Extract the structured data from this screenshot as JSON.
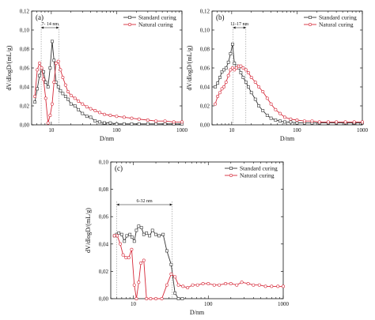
{
  "figure": {
    "colors": {
      "standard": "#333333",
      "natural": "#d62a3a",
      "axis": "#111111"
    }
  },
  "chart_data": [
    {
      "type": "line",
      "panel_label": "(a)",
      "xlabel": "D/nm",
      "ylabel": "dV/dlogD/(mL/g)",
      "xscale": "log",
      "xlim": [
        5,
        1000
      ],
      "ylim": [
        0,
        0.12
      ],
      "x_ticks": [
        10,
        100,
        1000
      ],
      "x_tick_labels": [
        "10",
        "100",
        "1000"
      ],
      "y_ticks": [
        0,
        0.02,
        0.04,
        0.06,
        0.08,
        0.1,
        0.12
      ],
      "y_tick_labels": [
        "0,00",
        "0,02",
        "0,04",
        "0,06",
        "0,08",
        "0,10",
        "0,12"
      ],
      "legend_position": "top-right",
      "annotation": {
        "text": "7- 14 nm",
        "x_start": 7,
        "x_end": 13
      },
      "series": [
        {
          "name": "Standard curing",
          "x": [
            5.6,
            6.1,
            6.6,
            7.1,
            7.6,
            8.2,
            8.9,
            9.6,
            10.3,
            11.0,
            11.8,
            12.8,
            13.8,
            15.0,
            16.5,
            18,
            20,
            23,
            26,
            30,
            35,
            40,
            47,
            55,
            65,
            80,
            100,
            130,
            170,
            220,
            300,
            400,
            550,
            750,
            1000
          ],
          "y": [
            0.024,
            0.038,
            0.052,
            0.058,
            0.056,
            0.045,
            0.04,
            0.06,
            0.088,
            0.068,
            0.045,
            0.04,
            0.036,
            0.033,
            0.03,
            0.027,
            0.022,
            0.02,
            0.016,
            0.012,
            0.009,
            0.008,
            0.004,
            0.003,
            0.002,
            0.002,
            0.001,
            0.001,
            0.001,
            0.001,
            0.001,
            0.001,
            0.001,
            0.001,
            0.001
          ]
        },
        {
          "name": "Natural curing",
          "x": [
            5.6,
            6.1,
            6.6,
            7.1,
            7.6,
            8.2,
            8.9,
            9.6,
            10.3,
            11.0,
            11.8,
            12.8,
            13.8,
            15.0,
            16.5,
            18,
            20,
            23,
            26,
            30,
            35,
            40,
            47,
            55,
            65,
            80,
            100,
            130,
            170,
            220,
            300,
            400,
            550,
            750,
            1000
          ],
          "y": [
            0.03,
            0.058,
            0.065,
            0.06,
            0.048,
            0.028,
            0.002,
            0.01,
            0.022,
            0.045,
            0.065,
            0.067,
            0.058,
            0.05,
            0.042,
            0.035,
            0.031,
            0.028,
            0.025,
            0.022,
            0.019,
            0.017,
            0.015,
            0.013,
            0.011,
            0.01,
            0.009,
            0.008,
            0.007,
            0.006,
            0.005,
            0.004,
            0.004,
            0.003,
            0.003
          ]
        }
      ]
    },
    {
      "type": "line",
      "panel_label": "(b)",
      "xlabel": "D/nm",
      "ylabel": "dV/dlogD/(mL/g)",
      "xscale": "log",
      "xlim": [
        5,
        1000
      ],
      "ylim": [
        0,
        0.12
      ],
      "x_ticks": [
        10,
        100,
        1000
      ],
      "x_tick_labels": [
        "10",
        "100",
        "1000"
      ],
      "y_ticks": [
        0,
        0.02,
        0.04,
        0.06,
        0.08,
        0.1,
        0.12
      ],
      "y_tick_labels": [
        "0,00",
        "0,02",
        "0,04",
        "0,06",
        "0,08",
        "0,10",
        "0,12"
      ],
      "legend_position": "top-right",
      "annotation": {
        "text": "11-17 nm",
        "x_start": 10.5,
        "x_end": 16.5
      },
      "series": [
        {
          "name": "Standard curing",
          "x": [
            5.6,
            6.1,
            6.6,
            7.1,
            7.6,
            8.2,
            8.9,
            9.6,
            10.3,
            11.0,
            11.8,
            12.8,
            13.8,
            15.0,
            16.5,
            18,
            20,
            23,
            26,
            30,
            35,
            40,
            47,
            55,
            65,
            80,
            100,
            130,
            170,
            220,
            300,
            400,
            550,
            750,
            1000
          ],
          "y": [
            0.04,
            0.044,
            0.05,
            0.056,
            0.058,
            0.06,
            0.066,
            0.075,
            0.085,
            0.065,
            0.062,
            0.06,
            0.055,
            0.05,
            0.045,
            0.04,
            0.034,
            0.027,
            0.02,
            0.015,
            0.01,
            0.007,
            0.005,
            0.004,
            0.003,
            0.003,
            0.002,
            0.002,
            0.002,
            0.002,
            0.002,
            0.002,
            0.002,
            0.002,
            0.002
          ]
        },
        {
          "name": "Natural curing",
          "x": [
            5.6,
            6.1,
            6.6,
            7.1,
            7.6,
            8.2,
            8.9,
            9.6,
            10.3,
            11.0,
            11.8,
            12.8,
            13.8,
            15.0,
            16.5,
            18,
            20,
            23,
            26,
            30,
            35,
            40,
            47,
            55,
            65,
            80,
            100,
            130,
            170,
            220,
            300,
            400,
            550,
            750,
            1000
          ],
          "y": [
            0.022,
            0.03,
            0.034,
            0.038,
            0.04,
            0.045,
            0.052,
            0.058,
            0.06,
            0.058,
            0.06,
            0.062,
            0.062,
            0.06,
            0.058,
            0.055,
            0.05,
            0.045,
            0.04,
            0.035,
            0.028,
            0.022,
            0.016,
            0.012,
            0.008,
            0.006,
            0.005,
            0.004,
            0.004,
            0.003,
            0.003,
            0.003,
            0.003,
            0.003,
            0.003
          ]
        }
      ]
    },
    {
      "type": "line",
      "panel_label": "(c)",
      "xlabel": "D/nm",
      "ylabel": "dV/dlogD/(mL/g)",
      "xscale": "log",
      "xlim": [
        5,
        1000
      ],
      "ylim": [
        0,
        0.1
      ],
      "x_ticks": [
        10,
        100,
        1000
      ],
      "x_tick_labels": [
        "10",
        "100",
        "1000"
      ],
      "y_ticks": [
        0,
        0.02,
        0.04,
        0.06,
        0.08,
        0.1
      ],
      "y_tick_labels": [
        "0,00",
        "0,02",
        "0,04",
        "0,06",
        "0,08",
        "0,10"
      ],
      "legend_position": "top-right",
      "annotation": {
        "text": "6-32 nm",
        "x_start": 6,
        "x_end": 33
      },
      "series": [
        {
          "name": "Standard curing",
          "x": [
            5.6,
            6.0,
            6.4,
            7.0,
            7.6,
            8.2,
            9.0,
            9.6,
            10.3,
            11.0,
            11.8,
            12.8,
            13.8,
            15,
            16.5,
            18,
            20,
            22,
            25,
            28,
            32,
            36,
            40,
            45
          ],
          "y": [
            0.046,
            0.047,
            0.048,
            0.047,
            0.042,
            0.046,
            0.047,
            0.045,
            0.042,
            0.05,
            0.053,
            0.052,
            0.047,
            0.048,
            0.046,
            0.05,
            0.047,
            0.046,
            0.047,
            0.035,
            0.025,
            0.004,
            0.0,
            0.0
          ]
        },
        {
          "name": "Natural curing",
          "x": [
            5.6,
            6.1,
            6.7,
            7.3,
            8.0,
            8.7,
            9.5,
            10.3,
            11.0,
            11.8,
            12.6,
            13.8,
            15,
            17,
            20,
            24,
            28,
            32,
            36,
            40,
            46,
            53,
            62,
            72,
            85,
            100,
            120,
            140,
            170,
            200,
            240,
            280,
            340,
            400,
            480,
            580,
            700,
            850,
            1000
          ],
          "y": [
            0.046,
            0.046,
            0.04,
            0.032,
            0.03,
            0.03,
            0.036,
            0.01,
            0.0,
            0.012,
            0.026,
            0.028,
            0.0,
            0.0,
            0.0,
            0.0,
            0.01,
            0.018,
            0.016,
            0.01,
            0.009,
            0.008,
            0.01,
            0.01,
            0.011,
            0.011,
            0.01,
            0.01,
            0.011,
            0.011,
            0.01,
            0.012,
            0.011,
            0.01,
            0.01,
            0.009,
            0.009,
            0.009,
            0.009
          ]
        }
      ]
    }
  ]
}
